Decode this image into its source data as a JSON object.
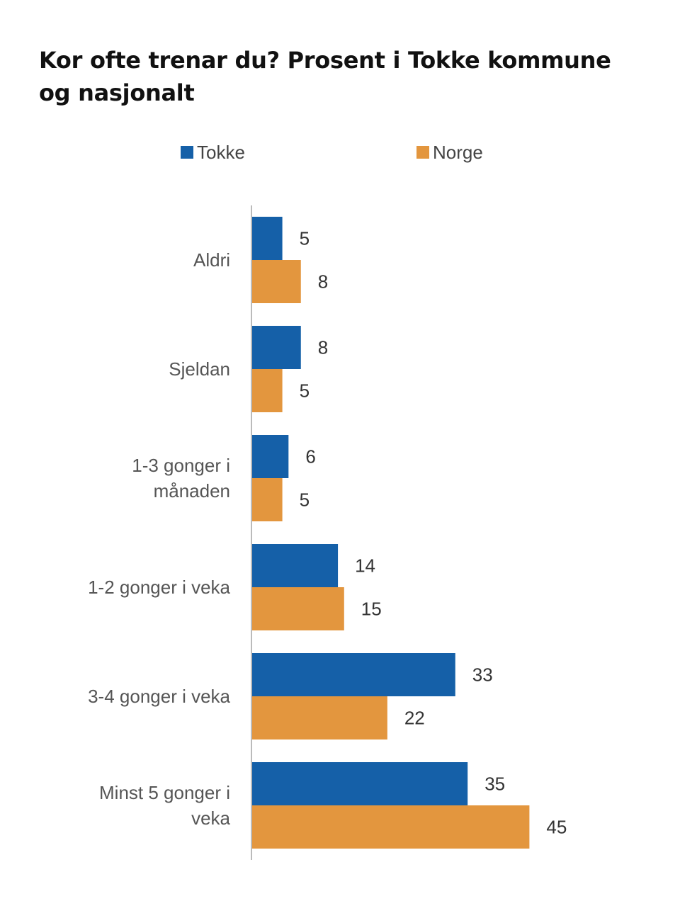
{
  "chart_data": {
    "type": "bar",
    "orientation": "horizontal",
    "title": "Kor ofte trenar du? Prosent i Tokke kommune og nasjonalt",
    "categories": [
      [
        "Aldri"
      ],
      [
        "Sjeldan"
      ],
      [
        "1-3 gonger i",
        "månaden"
      ],
      [
        "1-2 gonger i veka"
      ],
      [
        "3-4 gonger i veka"
      ],
      [
        "Minst 5 gonger i",
        "veka"
      ]
    ],
    "series": [
      {
        "name": "Tokke",
        "color": "#1560a8",
        "values": [
          5,
          8,
          6,
          14,
          33,
          35
        ]
      },
      {
        "name": "Norge",
        "color": "#e3963e",
        "values": [
          8,
          5,
          5,
          15,
          22,
          45
        ]
      }
    ],
    "xlim": [
      0,
      50
    ],
    "grid": false,
    "legend": "top"
  }
}
